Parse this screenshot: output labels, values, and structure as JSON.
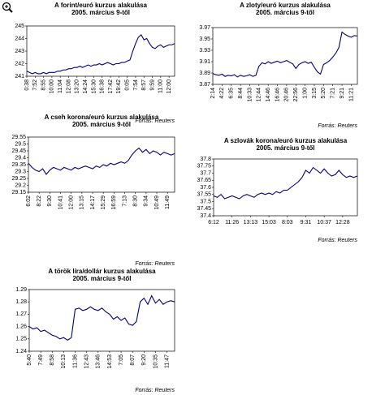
{
  "chart_data": [
    {
      "type": "line",
      "title": "A forint/euró kurzus alakulása",
      "subtitle": "2005. március 9-től",
      "source": "Forrás: Reuters",
      "color": "#000080",
      "grid": false,
      "categories": [
        "0:38",
        null,
        null,
        "7:52",
        null,
        null,
        "8:55",
        null,
        null,
        "10:00",
        null,
        null,
        "11:04",
        null,
        null,
        "12:08",
        null,
        null,
        "13:20",
        null,
        null,
        "14:24",
        null,
        null,
        "15:30",
        null,
        null,
        "16:38",
        null,
        null,
        "17:42",
        null,
        null,
        "19:42",
        null,
        null,
        "0:05",
        null,
        null,
        "7:54",
        null,
        null,
        "8:57",
        null,
        null,
        "9:59",
        null,
        null,
        "11:00",
        null,
        null,
        "12:00",
        null,
        null
      ],
      "values": [
        241.4,
        241.3,
        241.2,
        241.3,
        241.2,
        241.2,
        241.3,
        241.2,
        241.3,
        241.3,
        241.3,
        241.4,
        241.4,
        241.5,
        241.5,
        241.6,
        241.6,
        241.7,
        241.7,
        241.8,
        241.7,
        241.8,
        241.9,
        241.8,
        241.9,
        241.9,
        242.0,
        241.9,
        242.0,
        242.1,
        242.0,
        241.9,
        242.0,
        242.0,
        242.1,
        242.1,
        242.2,
        242.3,
        243.0,
        243.6,
        244.1,
        244.3,
        243.9,
        244.0,
        243.6,
        243.3,
        243.2,
        243.4,
        243.5,
        243.3,
        243.4,
        243.5,
        243.5,
        243.6
      ],
      "ylim": [
        241,
        245
      ],
      "yticks": [
        241,
        242,
        243,
        244,
        245
      ]
    },
    {
      "type": "line",
      "title": "A zloty/euró kurzus alakulása",
      "subtitle": "2005. március 9-től",
      "source": "Forrás: Reuters",
      "color": "#000080",
      "grid": false,
      "categories": [
        "2:14",
        null,
        null,
        "4:22",
        null,
        null,
        "6:35",
        null,
        null,
        "8:44",
        null,
        null,
        "10:33",
        null,
        null,
        "12:44",
        null,
        null,
        "14:46",
        null,
        null,
        "16:46",
        null,
        null,
        "20:46",
        null,
        null,
        "22:56",
        null,
        null,
        "1:00",
        null,
        null,
        "3:15",
        null,
        null,
        "5:20",
        null,
        null,
        "7:21",
        null,
        null,
        "9:21",
        null,
        null,
        "11:21",
        null,
        null
      ],
      "values": [
        3.889,
        3.887,
        3.886,
        3.888,
        3.884,
        3.886,
        3.885,
        3.887,
        3.883,
        3.886,
        3.884,
        3.885,
        3.887,
        3.884,
        3.886,
        3.902,
        3.908,
        3.906,
        3.91,
        3.907,
        3.909,
        3.911,
        3.908,
        3.91,
        3.912,
        3.909,
        3.906,
        3.898,
        3.905,
        3.908,
        3.91,
        3.907,
        3.909,
        3.9,
        3.892,
        3.888,
        3.905,
        3.908,
        3.912,
        3.918,
        3.925,
        3.935,
        3.962,
        3.958,
        3.955,
        3.953,
        3.956,
        3.955
      ],
      "ylim": [
        3.87,
        3.97
      ],
      "yticks": [
        3.87,
        3.89,
        3.91,
        3.93,
        3.95,
        3.97
      ]
    },
    {
      "type": "line",
      "title": "A cseh korona/euró kurzus alakulása",
      "subtitle": "2005. március 9-től",
      "source": "Forrás: Reuters",
      "color": "#000080",
      "grid": false,
      "categories": [
        "6:02",
        null,
        null,
        "8:22",
        null,
        null,
        "9:30",
        null,
        null,
        "10:41",
        null,
        null,
        "12:00",
        null,
        null,
        "13:15",
        null,
        null,
        "14:17",
        null,
        null,
        "15:29",
        null,
        null,
        "16:59",
        null,
        null,
        "7:13",
        null,
        null,
        "8:30",
        null,
        null,
        "9:34",
        null,
        null,
        "10:49",
        null,
        null,
        "11:49",
        null,
        null
      ],
      "values": [
        29.36,
        29.33,
        29.31,
        29.3,
        29.32,
        29.28,
        29.31,
        29.33,
        29.32,
        29.31,
        29.33,
        29.32,
        29.31,
        29.33,
        29.32,
        29.33,
        29.34,
        29.33,
        29.32,
        29.34,
        29.33,
        29.35,
        29.34,
        29.36,
        29.35,
        29.36,
        29.37,
        29.36,
        29.38,
        29.42,
        29.45,
        29.47,
        29.44,
        29.46,
        29.43,
        29.45,
        29.44,
        29.42,
        29.44,
        29.43,
        29.42,
        29.43
      ],
      "ylim": [
        29.15,
        29.55
      ],
      "yticks": [
        29.15,
        29.2,
        29.25,
        29.3,
        29.35,
        29.4,
        29.45,
        29.5,
        29.55
      ]
    },
    {
      "type": "line",
      "title": "A szlovák korona/euró kurzus alakulása",
      "subtitle": "2005. március 9-től",
      "source": "Forrás: Reuters",
      "color": "#000080",
      "grid": false,
      "categories": [
        "6:12",
        null,
        null,
        null,
        null,
        "11:26",
        null,
        null,
        null,
        null,
        "13:13",
        null,
        null,
        null,
        null,
        "15:03",
        null,
        null,
        null,
        null,
        "8:03",
        null,
        null,
        null,
        null,
        "9:31",
        null,
        null,
        null,
        null,
        "10:37",
        null,
        null,
        null,
        null,
        "12:28",
        null,
        null,
        null,
        null
      ],
      "values": [
        37.54,
        37.53,
        37.55,
        37.52,
        37.53,
        37.54,
        37.53,
        37.52,
        37.54,
        37.55,
        37.54,
        37.53,
        37.55,
        37.56,
        37.55,
        37.56,
        37.55,
        37.57,
        37.56,
        37.58,
        37.58,
        37.6,
        37.62,
        37.64,
        37.67,
        37.72,
        37.7,
        37.74,
        37.72,
        37.7,
        37.73,
        37.7,
        37.68,
        37.69,
        37.72,
        37.69,
        37.67,
        37.68,
        37.67,
        37.68
      ],
      "ylim": [
        37.4,
        37.8
      ],
      "yticks": [
        37.4,
        37.45,
        37.5,
        37.55,
        37.6,
        37.65,
        37.7,
        37.75,
        37.8
      ]
    },
    {
      "type": "line",
      "title": "A török líra/dollár kurzus alakulása",
      "subtitle": "2005. március 9-től",
      "source": "Forrás: Reuters",
      "color": "#000080",
      "grid": false,
      "categories": [
        "5:40",
        null,
        null,
        "7:49",
        null,
        null,
        "8:58",
        null,
        null,
        "10:13",
        null,
        null,
        "11:36",
        null,
        null,
        "12:43",
        null,
        null,
        "13:46",
        null,
        null,
        "14:53",
        null,
        null,
        "7:05",
        null,
        null,
        "8:07",
        null,
        null,
        "9:20",
        null,
        null,
        "10:35",
        null,
        null,
        "11:47",
        null,
        null
      ],
      "values": [
        1.26,
        1.258,
        1.259,
        1.256,
        1.257,
        1.255,
        1.253,
        1.252,
        1.25,
        1.251,
        1.249,
        1.251,
        1.274,
        1.275,
        1.273,
        1.274,
        1.276,
        1.274,
        1.273,
        1.275,
        1.272,
        1.27,
        1.266,
        1.268,
        1.265,
        1.267,
        1.262,
        1.261,
        1.264,
        1.28,
        1.283,
        1.278,
        1.285,
        1.279,
        1.282,
        1.278,
        1.28,
        1.281,
        1.28
      ],
      "ylim": [
        1.24,
        1.29
      ],
      "yticks": [
        1.24,
        1.25,
        1.26,
        1.27,
        1.28,
        1.29
      ]
    }
  ]
}
